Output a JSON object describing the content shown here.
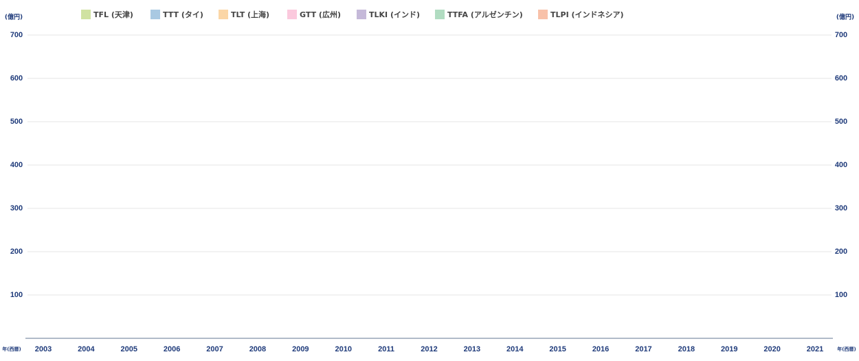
{
  "chart_data": {
    "type": "bar",
    "stacked": true,
    "y_unit": "(億円)",
    "x_unit": "年(西暦)",
    "categories": [
      "2003",
      "2004",
      "2005",
      "2006",
      "2007",
      "2008",
      "2009",
      "2010",
      "2011",
      "2012",
      "2013",
      "2014",
      "2015",
      "2016",
      "2017",
      "2018",
      "2019",
      "2020",
      "2021"
    ],
    "series": [
      {
        "name": "TFL (天津)",
        "color": "#d0e2a2",
        "values": [
          null,
          null,
          null,
          null,
          null,
          null,
          null,
          null,
          null,
          null,
          null,
          null,
          null,
          null,
          null,
          null,
          null,
          null,
          null
        ]
      },
      {
        "name": "TTT (タイ)",
        "color": "#a9c9e2",
        "values": [
          null,
          null,
          null,
          null,
          null,
          null,
          null,
          null,
          null,
          null,
          null,
          null,
          null,
          null,
          null,
          null,
          null,
          null,
          null
        ]
      },
      {
        "name": "TLT (上海)",
        "color": "#fbd6a6",
        "values": [
          null,
          null,
          null,
          null,
          null,
          null,
          null,
          null,
          null,
          null,
          null,
          null,
          null,
          null,
          null,
          null,
          null,
          null,
          null
        ]
      },
      {
        "name": "GTT (広州)",
        "color": "#fbc9dd",
        "values": [
          null,
          null,
          null,
          null,
          null,
          null,
          null,
          null,
          null,
          null,
          null,
          null,
          null,
          null,
          null,
          null,
          null,
          null,
          null
        ]
      },
      {
        "name": "TLKI (インド)",
        "color": "#c5b9d9",
        "values": [
          null,
          null,
          null,
          null,
          null,
          null,
          null,
          null,
          null,
          null,
          null,
          null,
          null,
          null,
          null,
          null,
          null,
          null,
          null
        ]
      },
      {
        "name": "TTFA (アルゼンチン)",
        "color": "#b1dcc1",
        "values": [
          null,
          null,
          null,
          null,
          null,
          null,
          null,
          null,
          null,
          null,
          null,
          null,
          null,
          null,
          null,
          null,
          null,
          null,
          null
        ]
      },
      {
        "name": "TLPI (インドネシア)",
        "color": "#f8c1a9",
        "values": [
          null,
          null,
          null,
          null,
          null,
          null,
          null,
          null,
          null,
          null,
          null,
          null,
          null,
          null,
          null,
          null,
          null,
          null,
          null
        ]
      }
    ],
    "ylim": [
      0,
      700
    ],
    "yticks": [
      100,
      200,
      300,
      400,
      500,
      600,
      700
    ],
    "grid": true
  }
}
